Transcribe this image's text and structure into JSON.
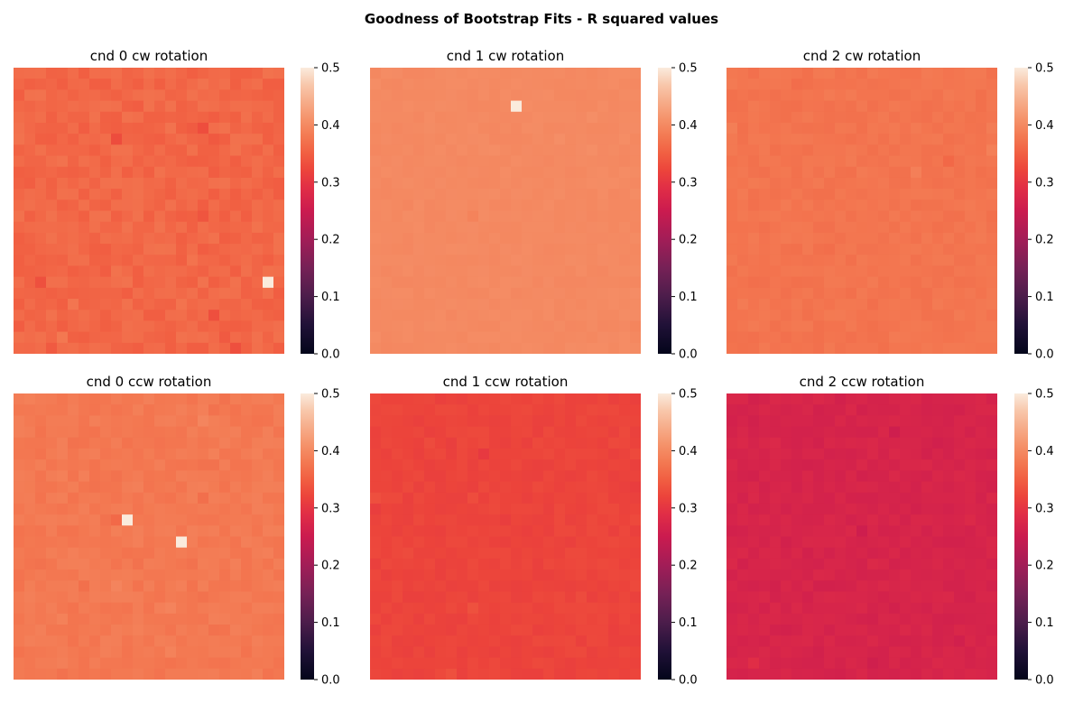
{
  "title": "Goodness of Bootstrap Fits - R squared values",
  "colormap": "rocket",
  "chart_data": [
    {
      "type": "heatmap",
      "title": "cnd 0 cw rotation",
      "grid": [
        25,
        26
      ],
      "typical_value": 0.36,
      "variation": 0.012,
      "outliers": [
        {
          "row": 19,
          "col": 23,
          "value": 0.5
        }
      ],
      "vmin": 0,
      "vmax": 0.5,
      "colorbar_ticks": [
        "0.0",
        "0.1",
        "0.2",
        "0.3",
        "0.4",
        "0.5"
      ]
    },
    {
      "type": "heatmap",
      "title": "cnd 1 cw rotation",
      "grid": [
        25,
        26
      ],
      "typical_value": 0.4,
      "variation": 0.003,
      "outliers": [
        {
          "row": 3,
          "col": 13,
          "value": 0.5
        }
      ],
      "vmin": 0,
      "vmax": 0.5,
      "colorbar_ticks": [
        "0.0",
        "0.1",
        "0.2",
        "0.3",
        "0.4",
        "0.5"
      ]
    },
    {
      "type": "heatmap",
      "title": "cnd 2 cw rotation",
      "grid": [
        25,
        26
      ],
      "typical_value": 0.375,
      "variation": 0.006,
      "outliers": [],
      "vmin": 0,
      "vmax": 0.5,
      "colorbar_ticks": [
        "0.0",
        "0.1",
        "0.2",
        "0.3",
        "0.4",
        "0.5"
      ]
    },
    {
      "type": "heatmap",
      "title": "cnd 0 ccw rotation",
      "grid": [
        25,
        26
      ],
      "typical_value": 0.38,
      "variation": 0.008,
      "outliers": [
        {
          "row": 11,
          "col": 10,
          "value": 0.5
        },
        {
          "row": 13,
          "col": 15,
          "value": 0.5
        }
      ],
      "vmin": 0,
      "vmax": 0.5,
      "colorbar_ticks": [
        "0.0",
        "0.1",
        "0.2",
        "0.3",
        "0.4",
        "0.5"
      ]
    },
    {
      "type": "heatmap",
      "title": "cnd 1 ccw rotation",
      "grid": [
        25,
        26
      ],
      "typical_value": 0.32,
      "variation": 0.006,
      "outliers": [],
      "vmin": 0,
      "vmax": 0.5,
      "colorbar_ticks": [
        "0.0",
        "0.1",
        "0.2",
        "0.3",
        "0.4",
        "0.5"
      ]
    },
    {
      "type": "heatmap",
      "title": "cnd 2 ccw rotation",
      "grid": [
        25,
        26
      ],
      "typical_value": 0.27,
      "variation": 0.007,
      "outliers": [],
      "vmin": 0,
      "vmax": 0.5,
      "colorbar_ticks": [
        "0.0",
        "0.1",
        "0.2",
        "0.3",
        "0.4",
        "0.5"
      ]
    }
  ]
}
